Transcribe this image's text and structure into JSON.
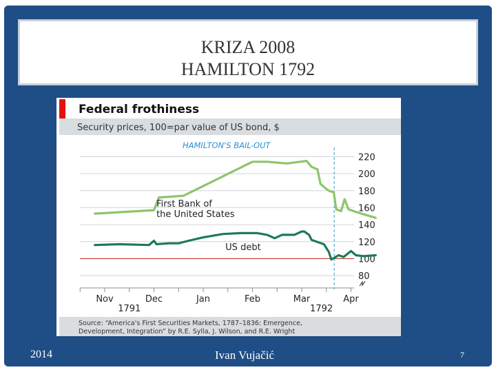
{
  "slide": {
    "title_line1": "KRIZA 2008",
    "title_line2": "HAMILTON 1792",
    "footer_year": "2014",
    "footer_author": "Ivan Vujačić",
    "page_number": "7"
  },
  "chart_data": {
    "type": "line",
    "title": "Federal frothiness",
    "subtitle": "Security prices, 100=par value of US bond, $",
    "annotation": "HAMILTON'S BAIL-OUT",
    "source": [
      "Source: “America's First Securities Markets, 1787–1836: Emergence,",
      "Development, Integration” by R.E. Sylla, J. Wilson, and R.E. Wright"
    ],
    "x_ticks": [
      "Nov",
      "Dec",
      "Jan",
      "Feb",
      "Mar",
      "Apr"
    ],
    "year_labels": [
      {
        "label": "1791",
        "month": 0.5
      },
      {
        "label": "1792",
        "month": 4.4
      }
    ],
    "y_ticks": [
      80,
      100,
      120,
      140,
      160,
      180,
      200,
      220
    ],
    "ylim": [
      72,
      226
    ],
    "axis_break": true,
    "reference_value": 100,
    "bailout_month": 4.66,
    "colors": {
      "title_bar": "#e3120b",
      "subtitle_band": "#d9dde0",
      "source_band": "#d9dde0",
      "bank": "#8cc56a",
      "debt": "#1c7a5a",
      "bailout": "#4ea9d8",
      "reference": "#c0392b"
    },
    "series": [
      {
        "name": "First Bank of the United States",
        "x": [
          -0.2,
          1.0,
          1.1,
          1.6,
          3.0,
          3.3,
          3.7,
          4.1,
          4.2,
          4.32,
          4.38,
          4.5,
          4.55,
          4.65,
          4.7,
          4.8,
          4.87,
          4.95,
          5.1,
          5.5
        ],
        "values": [
          153,
          157,
          172,
          174,
          214,
          214,
          212,
          215,
          208,
          205,
          188,
          182,
          180,
          178,
          158,
          156,
          170,
          158,
          155,
          148
        ]
      },
      {
        "name": "US debt",
        "x": [
          -0.2,
          0.3,
          0.9,
          1.0,
          1.05,
          1.3,
          1.5,
          1.7,
          2.0,
          2.4,
          2.75,
          3.1,
          3.3,
          3.45,
          3.6,
          3.85,
          4.0,
          4.05,
          4.15,
          4.2,
          4.3,
          4.45,
          4.55,
          4.6,
          4.75,
          4.85,
          5.0,
          5.1,
          5.25,
          5.5
        ],
        "values": [
          116,
          117,
          116,
          121,
          117,
          118,
          118,
          121,
          125,
          129,
          130,
          130,
          128,
          124,
          128,
          128,
          132,
          132,
          128,
          122,
          120,
          117,
          108,
          99,
          104,
          102,
          109,
          104,
          103,
          104
        ]
      }
    ],
    "series_labels": [
      {
        "text": [
          "First Bank of",
          "the United States"
        ],
        "month": 1.05,
        "value": 161
      },
      {
        "text": [
          "US debt"
        ],
        "month": 2.45,
        "value": 110
      }
    ]
  }
}
